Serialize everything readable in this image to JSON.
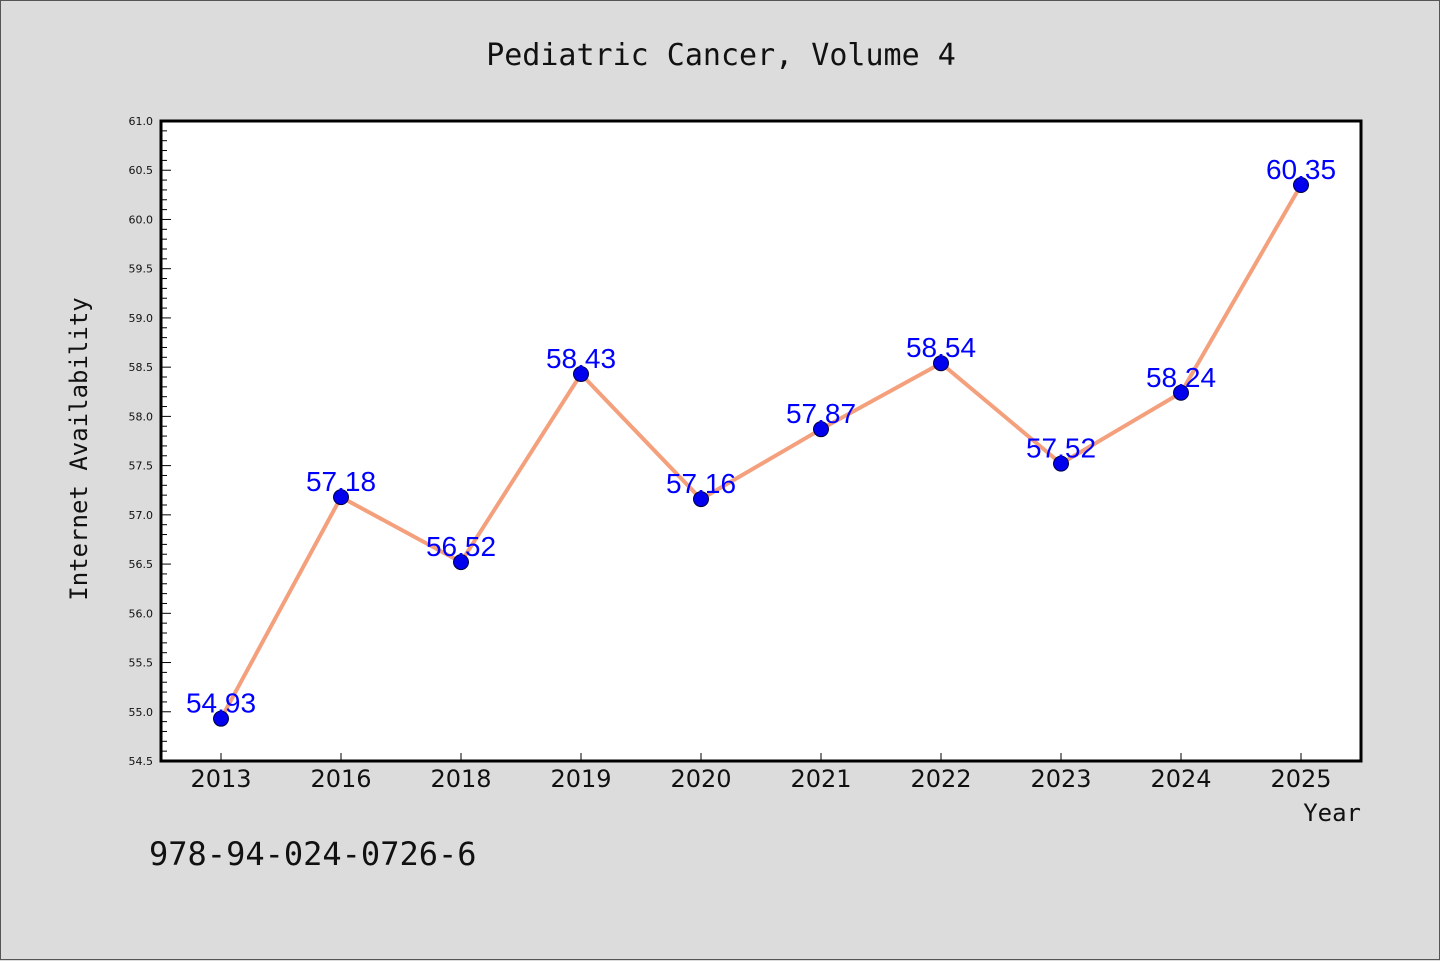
{
  "chart_data": {
    "type": "line",
    "title": "Pediatric Cancer, Volume 4",
    "xlabel": "Year",
    "ylabel": "Internet Availability",
    "categories": [
      "2013",
      "2016",
      "2018",
      "2019",
      "2020",
      "2021",
      "2022",
      "2023",
      "2024",
      "2025"
    ],
    "series": [
      {
        "values": [
          54.93,
          57.18,
          56.52,
          58.43,
          57.16,
          57.87,
          58.54,
          57.52,
          58.24,
          60.35
        ]
      }
    ],
    "data_labels": [
      "54.93",
      "57.18",
      "56.52",
      "58.43",
      "57.16",
      "57.87",
      "58.54",
      "57.52",
      "58.24",
      "60.35"
    ],
    "yticks": [
      "54.5",
      "55.0",
      "55.5",
      "56.0",
      "56.5",
      "57.0",
      "57.5",
      "58.0",
      "58.5",
      "59.0",
      "59.5",
      "60.0",
      "60.5",
      "61.0"
    ],
    "ylim": [
      54.5,
      61.0
    ],
    "grid": false,
    "legend": false
  },
  "annotation": "978-94-024-0726-6",
  "colors": {
    "background": "#dcdcdc",
    "plot_background": "#ffffff",
    "line": "#f4a07c",
    "marker": "#0000ee",
    "data_label": "#0000ff",
    "axis": "#000000"
  }
}
